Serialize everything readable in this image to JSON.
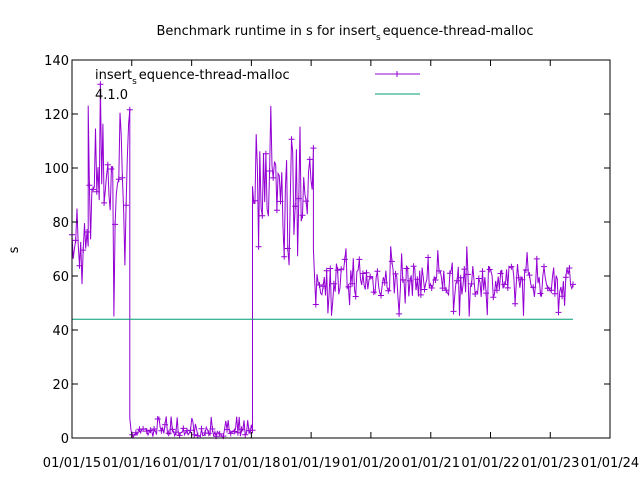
{
  "chart_data": {
    "type": "line",
    "title": {
      "prefix": "Benchmark runtime in s for insert",
      "subscript": "s",
      "suffix": "equence-thread-malloc"
    },
    "ylabel": "s",
    "xlabel": "",
    "ylim": [
      0,
      140
    ],
    "yticks": [
      0,
      20,
      40,
      60,
      80,
      100,
      120,
      140
    ],
    "xlim": [
      "2015-01-01",
      "2024-01-01"
    ],
    "xticks": [
      "01/01/15",
      "01/01/16",
      "01/01/17",
      "01/01/18",
      "01/01/19",
      "01/01/20",
      "01/01/21",
      "01/01/22",
      "01/01/23",
      "01/01/24"
    ],
    "grid": false,
    "legend_position": "top-left",
    "series": [
      {
        "name": {
          "prefix": "insert",
          "subscript": "s",
          "suffix": "equence-thread-malloc"
        },
        "color": "#9400d3",
        "marker": "plus",
        "segments": [
          {
            "x_start": "2015-01-01",
            "x_end": "2015-04-10",
            "y_min": 57,
            "y_max": 85,
            "y_center": 70
          },
          {
            "x_start": "2015-04-10",
            "x_end": "2015-12-20",
            "y_min": 45,
            "y_max": 131,
            "y_center": 100
          },
          {
            "x_start": "2015-12-20",
            "x_end": "2018-01-08",
            "y_min": 1,
            "y_max": 8,
            "y_center": 2
          },
          {
            "x_start": "2018-01-08",
            "x_end": "2019-01-15",
            "y_min": 64,
            "y_max": 123,
            "y_center": 95
          },
          {
            "x_start": "2019-01-15",
            "x_end": "2023-05-20",
            "y_min": 45,
            "y_max": 71,
            "y_center": 58
          }
        ]
      },
      {
        "name": "4.1.0",
        "color": "#009e73",
        "marker": "none",
        "segments": [
          {
            "x_start": "2015-01-01",
            "x_end": "2023-05-20",
            "y_min": 44,
            "y_max": 44,
            "y_center": 44
          }
        ]
      }
    ]
  }
}
